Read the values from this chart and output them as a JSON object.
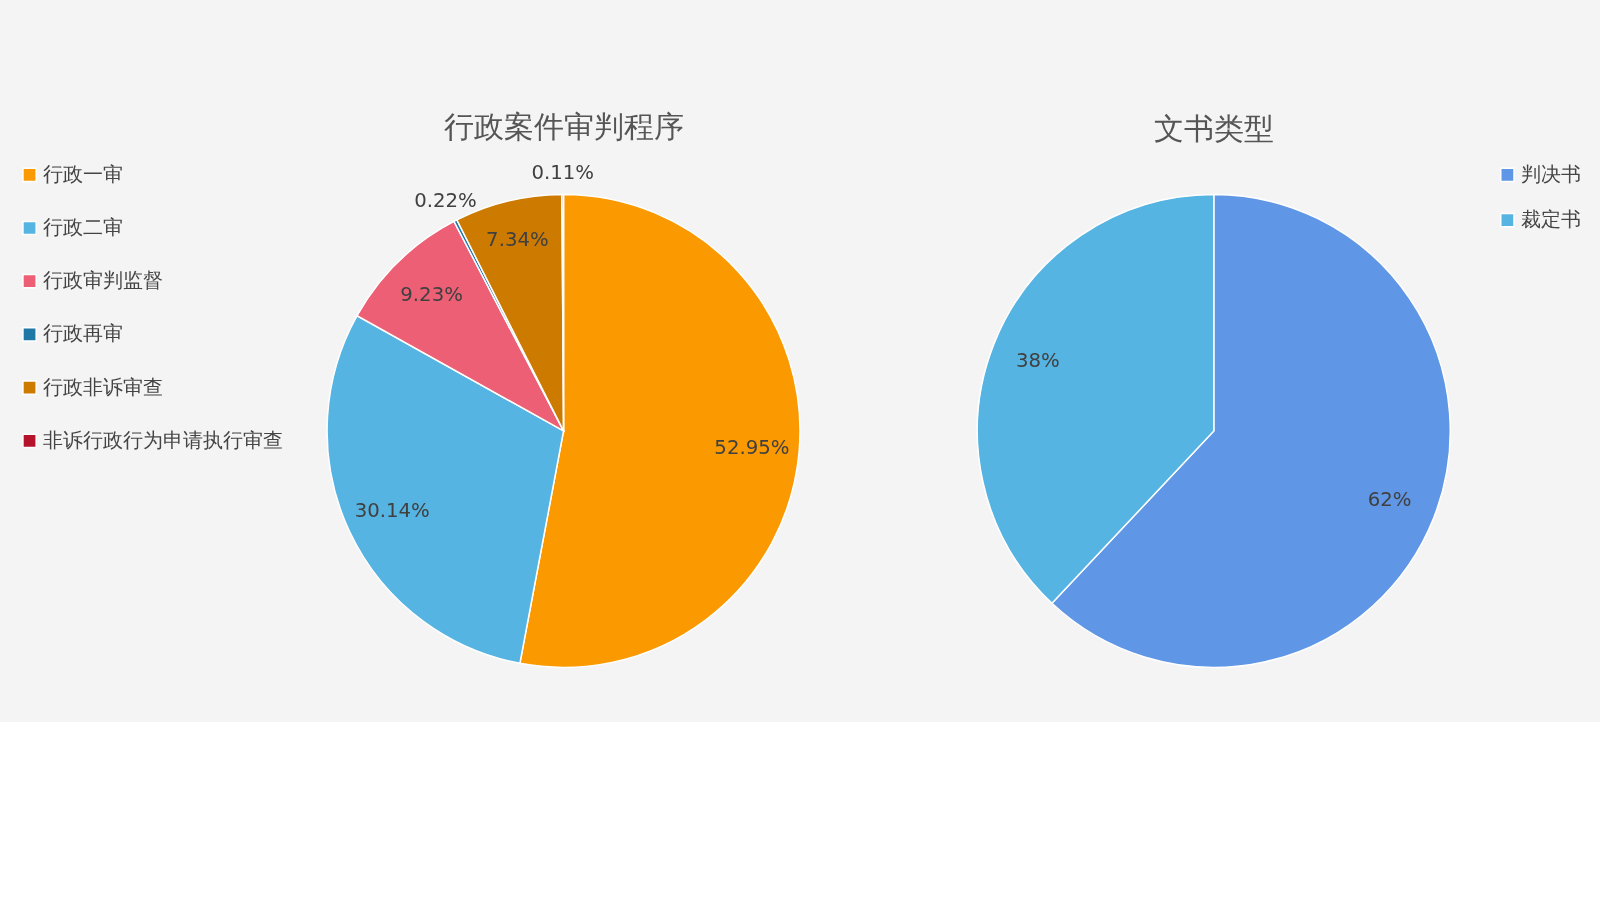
{
  "chart_data": [
    {
      "type": "pie",
      "title": "行政案件审判程序",
      "categories": [
        "行政一审",
        "行政二审",
        "行政审判监督",
        "行政再审",
        "行政非诉审查",
        "非诉行政行为申请执行审查"
      ],
      "values": [
        52.95,
        30.14,
        9.23,
        0.22,
        7.34,
        0.11
      ],
      "colors": [
        "#fb9900",
        "#56b4e3",
        "#ec5f74",
        "#1f77a6",
        "#cc7a00",
        "#b5122b"
      ],
      "value_labels": [
        "52.95%",
        "30.14%",
        "9.23%",
        "0.22%",
        "7.34%",
        "0.11%"
      ],
      "legend": "left"
    },
    {
      "type": "pie",
      "title": "文书类型",
      "categories": [
        "判决书",
        "裁定书"
      ],
      "values": [
        62,
        38
      ],
      "colors": [
        "#5f96e5",
        "#56b4e3"
      ],
      "value_labels": [
        "62%",
        "38%"
      ],
      "legend": "right"
    }
  ]
}
